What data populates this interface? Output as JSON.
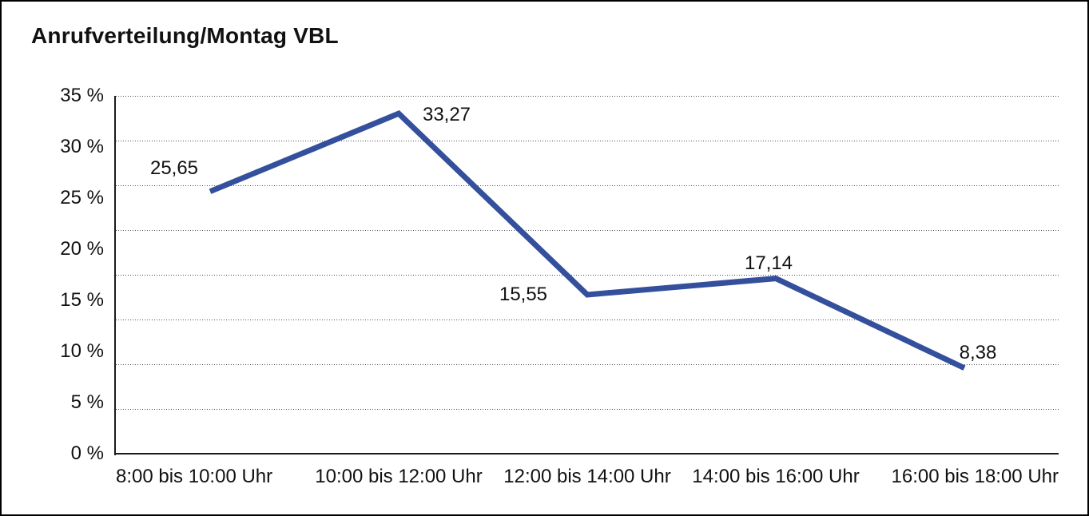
{
  "title": "Anrufverteilung/Montag VBL",
  "colors": {
    "line": "#34509C",
    "text": "#111111",
    "axis": "#1a1a1a",
    "gridline": "#4d4d4d",
    "background": "#ffffff",
    "frame_border": "#000000"
  },
  "chart_data": {
    "type": "line",
    "title": "Anrufverteilung/Montag VBL",
    "categories": [
      "8:00 bis 10:00 Uhr",
      "10:00 bis 12:00 Uhr",
      "12:00 bis 14:00 Uhr",
      "14:00 bis 16:00 Uhr",
      "16:00 bis 18:00 Uhr"
    ],
    "values": [
      25.65,
      33.27,
      15.55,
      17.14,
      8.38
    ],
    "value_labels": [
      "25,65",
      "33,27",
      "15,55",
      "17,14",
      "8,38"
    ],
    "xlabel": "",
    "ylabel": "",
    "ylim": [
      0,
      35
    ],
    "y_ticks": [
      35,
      30,
      25,
      20,
      15,
      10,
      5,
      0
    ],
    "y_tick_labels": [
      "35 %",
      "30 %",
      "25 %",
      "20 %",
      "15 %",
      "10 %",
      "5 %",
      "0 %"
    ],
    "legend": "none",
    "grid": "horizontal dotted, 8 equal intervals",
    "line_width": 7
  }
}
